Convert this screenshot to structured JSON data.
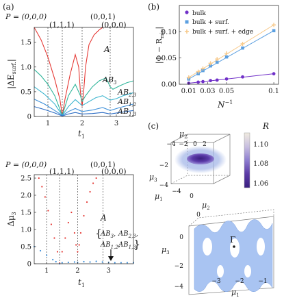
{
  "figure": {
    "panel_labels": [
      "(a)",
      "(b)",
      "(c)"
    ]
  },
  "colors": {
    "A": "#e53935",
    "AB3": "#2fb59a",
    "AB23": "#3bb5cf",
    "AB12": "#3d8fd9",
    "AB13": "#2b6cc4",
    "bulk": "#7030c8",
    "bulk_surf": "#5b9fe0",
    "bulk_surf_edge": "#f7c98a",
    "cube_blob": "#5a3aa8",
    "cube_cloud": "#9fb3e6",
    "surface_sheet": "#a9c4f2"
  },
  "panel_a_top": {
    "P_label": "P = (0,0,0)",
    "points": [
      "(1,1,1)",
      "(0,0,1)",
      "(0,0,0)"
    ],
    "ylabel": "|ΔE",
    "ylabel_sub": "surf.",
    "ylabel_close": "|",
    "xlabel": "t",
    "xlabel_sub": "1",
    "series_labels": [
      {
        "main": "A",
        "sub": ""
      },
      {
        "main": "AB",
        "sub": "3"
      },
      {
        "main": "AB",
        "sub": "2,3"
      },
      {
        "main": "AB",
        "sub": "1,2"
      },
      {
        "main": "AB",
        "sub": "1,3"
      }
    ]
  },
  "panel_a_bottom": {
    "P_label": "P = (0,0,0)",
    "points": [
      "(1,1,1)",
      "(0,0,1)",
      "(0,0,0)"
    ],
    "ylabel": "Δμ",
    "ylabel_sub": "3",
    "xlabel": "t",
    "xlabel_sub": "1",
    "A_label": "A",
    "brace_open": "{",
    "brace_close": "}",
    "group_labels": [
      {
        "main": "AB",
        "sub": "3"
      },
      {
        "main": "AB",
        "sub": "2,3"
      },
      {
        "main": "AB",
        "sub": "1,2"
      },
      {
        "main": "AB",
        "sub": "1,3"
      }
    ]
  },
  "panel_b": {
    "ylabel": "|Φ − R",
    "ylabel_sub": "min",
    "ylabel_close": "|",
    "xlabel": "N",
    "xlabel_sup": "−1",
    "legend": [
      "bulk",
      "bulk + surf.",
      "bulk + surf. + edge"
    ]
  },
  "panel_c": {
    "cube": {
      "mu1": "μ",
      "mu1_sub": "1",
      "mu2": "μ",
      "mu2_sub": "2",
      "mu3": "μ",
      "mu3_sub": "3",
      "mu2_ticks": [
        "−4",
        "−2",
        "0",
        "2"
      ],
      "mu3_ticks": [
        "−2",
        "−4"
      ],
      "mu1_ticks": [
        "−4",
        "0"
      ]
    },
    "colorbar": {
      "label": "R",
      "ticks": [
        "1.10",
        "1.08",
        "1.06"
      ],
      "stops": [
        "#f1ece0",
        "#c8bfe0",
        "#8e7ed0",
        "#5b3aa6",
        "#3a1f80"
      ]
    },
    "surface": {
      "mu2": "μ",
      "mu2_sub": "2",
      "mu3": "μ",
      "mu3_sub": "3",
      "mu1": "μ",
      "mu1_sub": "1",
      "gamma": "Γ",
      "mu3_ticks": [
        "0",
        "−2",
        "−4"
      ],
      "mu1_ticks": [
        "−3",
        "−2",
        "−1"
      ],
      "mu2_ticks": [
        "0"
      ]
    }
  },
  "chart_data": [
    {
      "type": "line",
      "panel": "a-top",
      "xlabel": "t1",
      "ylabel": "|ΔE_surf.|",
      "xlim": [
        0.6,
        3.5
      ],
      "ylim": [
        0,
        1.8
      ],
      "xticks": [
        1,
        2,
        3
      ],
      "yticks": [
        0,
        0.5,
        1.0,
        1.5
      ],
      "vlines": [
        1.0,
        1.42,
        2.0,
        2.82
      ],
      "series": [
        {
          "name": "A",
          "x": [
            0.6,
            0.8,
            1.0,
            1.2,
            1.35,
            1.42,
            1.5,
            1.65,
            1.8,
            1.9,
            1.95,
            2.0,
            2.05,
            2.1,
            2.2,
            2.35,
            2.5,
            2.6
          ],
          "y": [
            1.8,
            1.55,
            1.2,
            0.75,
            0.35,
            0.02,
            0.35,
            0.85,
            1.25,
            1.0,
            0.5,
            0.2,
            0.55,
            1.0,
            1.45,
            1.65,
            1.75,
            1.8
          ]
        },
        {
          "name": "AB3",
          "x": [
            0.6,
            0.8,
            1.0,
            1.2,
            1.42,
            1.6,
            1.8,
            1.95,
            2.0,
            2.1,
            2.3,
            2.5,
            2.7,
            2.82,
            2.9,
            3.1,
            3.3,
            3.5
          ],
          "y": [
            0.95,
            0.82,
            0.65,
            0.42,
            0.02,
            0.42,
            0.65,
            0.42,
            0.3,
            0.42,
            0.6,
            0.72,
            0.78,
            0.6,
            0.55,
            0.62,
            0.68,
            0.72
          ]
        },
        {
          "name": "AB2,3",
          "x": [
            0.6,
            0.9,
            1.2,
            1.42,
            1.6,
            1.8,
            2.0,
            2.2,
            2.4,
            2.6,
            2.82,
            3.0,
            3.2,
            3.5
          ],
          "y": [
            0.6,
            0.45,
            0.25,
            0.02,
            0.2,
            0.34,
            0.22,
            0.3,
            0.38,
            0.42,
            0.33,
            0.36,
            0.42,
            0.48
          ]
        },
        {
          "name": "AB1,2",
          "x": [
            0.6,
            0.9,
            1.2,
            1.42,
            1.6,
            1.8,
            2.0,
            2.3,
            2.6,
            2.82,
            3.1,
            3.5
          ],
          "y": [
            0.35,
            0.25,
            0.12,
            0.02,
            0.1,
            0.16,
            0.1,
            0.13,
            0.18,
            0.12,
            0.18,
            0.25
          ]
        },
        {
          "name": "AB1,3",
          "x": [
            0.6,
            0.9,
            1.2,
            1.42,
            1.6,
            1.8,
            2.0,
            2.3,
            2.6,
            2.82,
            3.1,
            3.5
          ],
          "y": [
            0.2,
            0.14,
            0.07,
            0.01,
            0.05,
            0.08,
            0.05,
            0.06,
            0.08,
            0.05,
            0.08,
            0.12
          ]
        }
      ]
    },
    {
      "type": "scatter",
      "panel": "a-bottom",
      "xlabel": "t1",
      "ylabel": "Δμ3",
      "xlim": [
        0.6,
        3.8
      ],
      "ylim": [
        0,
        2.6
      ],
      "xticks": [
        1,
        2,
        3
      ],
      "yticks": [
        0,
        0.5,
        1.0,
        1.5,
        2.0,
        2.5
      ],
      "vlines": [
        1.0,
        1.42,
        2.0,
        2.82
      ],
      "series": [
        {
          "name": "A",
          "x": [
            0.75,
            0.85,
            0.95,
            1.05,
            1.15,
            1.25,
            1.35,
            1.42,
            1.5,
            1.6,
            1.7,
            1.8,
            1.9,
            1.95,
            2.0,
            2.05,
            2.1,
            2.2,
            2.3,
            2.4,
            2.5,
            2.6
          ],
          "y": [
            2.5,
            2.25,
            1.95,
            1.55,
            1.15,
            0.75,
            0.35,
            0.02,
            0.35,
            0.75,
            1.2,
            1.5,
            0.9,
            0.55,
            0.35,
            0.55,
            0.9,
            1.4,
            1.8,
            2.1,
            2.35,
            2.5
          ]
        },
        {
          "name": "AB-group",
          "x": [
            0.6,
            0.8,
            1.0,
            1.2,
            1.3,
            1.42,
            1.5,
            1.7,
            1.9,
            2.0,
            2.2,
            2.4,
            2.6,
            2.8,
            3.0,
            3.2,
            3.4,
            3.6,
            3.8
          ],
          "y": [
            0.5,
            0.38,
            0.25,
            0.12,
            0.06,
            0.0,
            0.03,
            0.04,
            0.05,
            0.04,
            0.06,
            0.05,
            0.07,
            0.05,
            0.04,
            0.03,
            0.03,
            0.03,
            0.03
          ]
        }
      ]
    },
    {
      "type": "scatter",
      "panel": "b",
      "xlabel": "N^-1",
      "ylabel": "|Φ − R_min|",
      "xlim": [
        0,
        0.105
      ],
      "ylim": [
        0,
        0.15
      ],
      "xticks": [
        0.01,
        0.03,
        0.05,
        0.1
      ],
      "yticks": [
        0.0,
        0.05,
        0.1
      ],
      "series": [
        {
          "name": "bulk",
          "x": [
            0.01,
            0.02,
            0.025,
            0.033,
            0.04,
            0.05,
            0.067,
            0.1
          ],
          "y": [
            0.002,
            0.004,
            0.005,
            0.007,
            0.008,
            0.01,
            0.014,
            0.02
          ]
        },
        {
          "name": "bulk + surf.",
          "x": [
            0.01,
            0.02,
            0.025,
            0.033,
            0.04,
            0.05,
            0.067,
            0.1
          ],
          "y": [
            0.01,
            0.02,
            0.026,
            0.035,
            0.042,
            0.052,
            0.069,
            0.102
          ]
        },
        {
          "name": "bulk + surf. + edge",
          "x": [
            0.01,
            0.02,
            0.025,
            0.033,
            0.04,
            0.05,
            0.067,
            0.1
          ],
          "y": [
            0.013,
            0.024,
            0.03,
            0.04,
            0.048,
            0.059,
            0.077,
            0.113
          ]
        }
      ]
    }
  ]
}
